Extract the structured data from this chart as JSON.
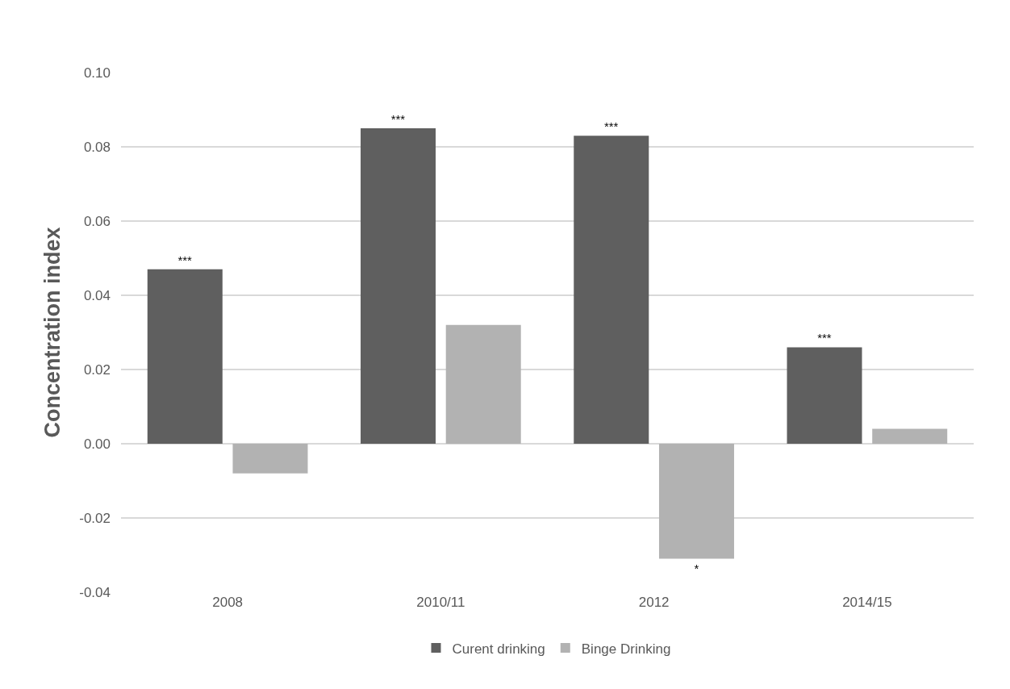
{
  "chart_data": {
    "type": "bar",
    "ylabel": "Concentration index",
    "categories": [
      "2008",
      "2010/11",
      "2012",
      "2014/15"
    ],
    "series": [
      {
        "name": "Curent drinking",
        "color": "#5f5f5f",
        "values": [
          0.047,
          0.085,
          0.083,
          0.026
        ],
        "value_labels": [
          "***",
          "***",
          "***",
          "***"
        ]
      },
      {
        "name": "Binge Drinking",
        "color": "#b2b2b2",
        "values": [
          -0.008,
          0.032,
          -0.031,
          0.004
        ],
        "value_labels": [
          null,
          null,
          "*",
          null
        ]
      }
    ],
    "ylim": [
      -0.04,
      0.1
    ],
    "yticks": [
      {
        "value": -0.04,
        "label": "-0.04"
      },
      {
        "value": -0.02,
        "label": "-0.02"
      },
      {
        "value": 0,
        "label": "0.00"
      },
      {
        "value": 0.02,
        "label": "0.02"
      },
      {
        "value": 0.04,
        "label": "0.04"
      },
      {
        "value": 0.06,
        "label": "0.06"
      },
      {
        "value": 0.08,
        "label": "0.08"
      },
      {
        "value": 0.1,
        "label": "0.10"
      }
    ],
    "grid": "y",
    "legend": "bottom"
  }
}
